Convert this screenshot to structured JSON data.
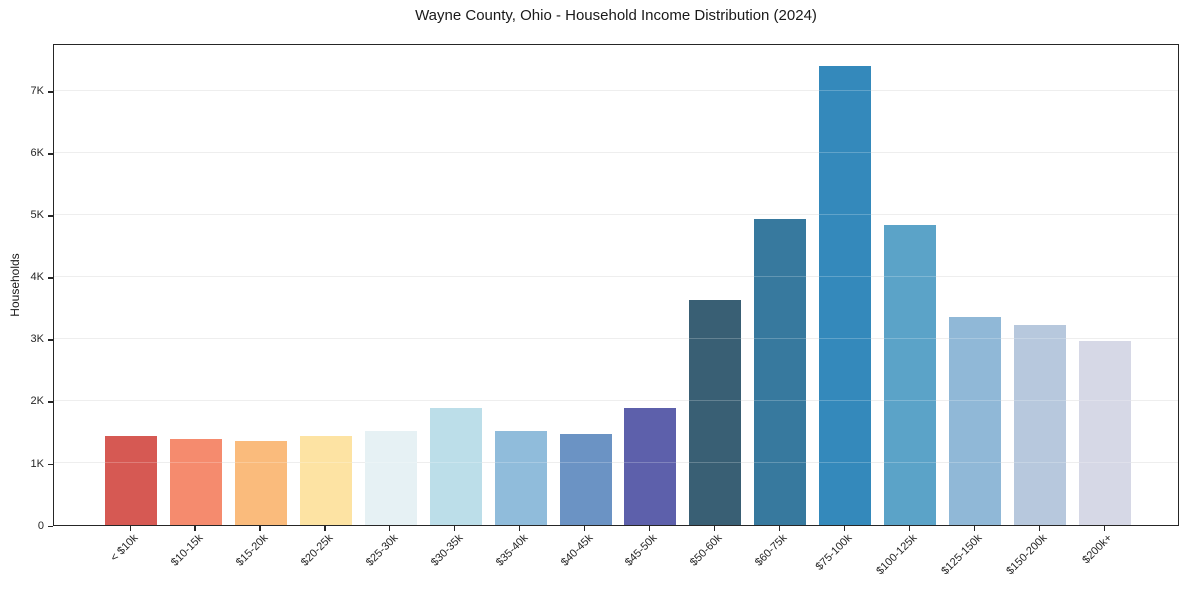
{
  "chart_data": {
    "type": "bar",
    "title": "Wayne County, Ohio - Household Income Distribution (2024)",
    "xlabel": "",
    "ylabel": "Households",
    "categories": [
      "< $10k",
      "$10-15k",
      "$15-20k",
      "$20-25k",
      "$25-30k",
      "$30-35k",
      "$35-40k",
      "$40-45k",
      "$45-50k",
      "$50-60k",
      "$60-75k",
      "$75-100k",
      "$100-125k",
      "$125-150k",
      "$150-200k",
      "$200k+"
    ],
    "values": [
      1430,
      1380,
      1350,
      1430,
      1520,
      1880,
      1510,
      1460,
      1890,
      3620,
      4930,
      7400,
      4840,
      3350,
      3230,
      2960
    ],
    "bar_colors": [
      "#d65953",
      "#f58b6e",
      "#fabb7c",
      "#fde3a3",
      "#e6f1f4",
      "#bcdee9",
      "#90bcdb",
      "#6b93c4",
      "#5d60ab",
      "#395f74",
      "#37799e",
      "#3489bb",
      "#5ba3c8",
      "#90b8d7",
      "#b7c8dd",
      "#d6d8e6"
    ],
    "ylim": [
      0,
      7770
    ],
    "yticks": {
      "values": [
        0,
        1000,
        2000,
        3000,
        4000,
        5000,
        6000,
        7000
      ],
      "labels": [
        "0",
        "1K",
        "2K",
        "3K",
        "4K",
        "5K",
        "6K",
        "7K"
      ]
    },
    "grid": "horizontal",
    "grid_color": "#e9e9e9",
    "axis_color": "#262626",
    "text_color": "#1a1a1a",
    "background": "#ffffff",
    "legend": "none"
  }
}
